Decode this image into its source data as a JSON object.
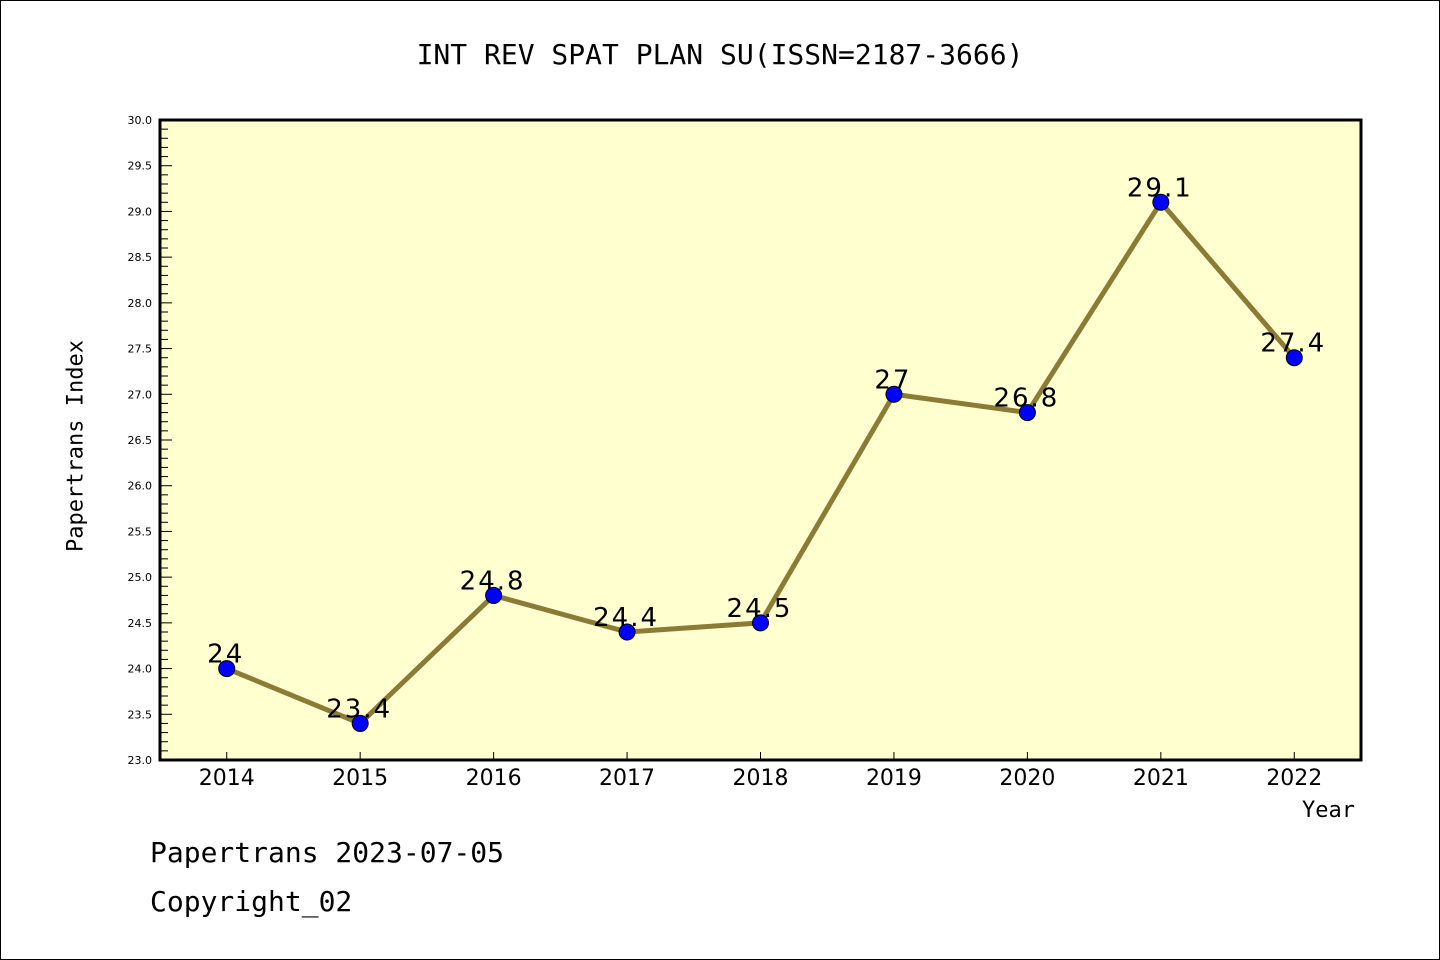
{
  "chart_data": {
    "type": "line",
    "title": "INT REV SPAT PLAN SU(ISSN=2187-3666)",
    "xlabel": "Year",
    "ylabel": "Papertrans Index",
    "x": [
      2014,
      2015,
      2016,
      2017,
      2018,
      2019,
      2020,
      2021,
      2022
    ],
    "series": [
      {
        "name": "Papertrans Index",
        "values": [
          24,
          23.4,
          24.8,
          24.4,
          24.5,
          27,
          26.8,
          29.1,
          27.4
        ]
      }
    ],
    "data_labels": [
      "24",
      "23.4",
      "24.8",
      "24.4",
      "24.5",
      "27",
      "26.8",
      "29.1",
      "27.4"
    ],
    "xlim": [
      2013.5,
      2022.5
    ],
    "ylim": [
      23.0,
      30.0
    ],
    "yticks": [
      "23.0",
      "23.5",
      "24.0",
      "24.5",
      "25.0",
      "25.5",
      "26.0",
      "26.5",
      "27.0",
      "27.5",
      "28.0",
      "28.5",
      "29.0",
      "29.5",
      "30.0"
    ],
    "xticks": [
      "2014",
      "2015",
      "2016",
      "2017",
      "2018",
      "2019",
      "2020",
      "2021",
      "2022"
    ],
    "grid": false,
    "colors": {
      "background": "#FFFFD0",
      "line": "#8B7B35",
      "marker": "#0000FF"
    }
  },
  "footer": {
    "line1": "Papertrans 2023-07-05",
    "line2": "Copyright_02"
  }
}
